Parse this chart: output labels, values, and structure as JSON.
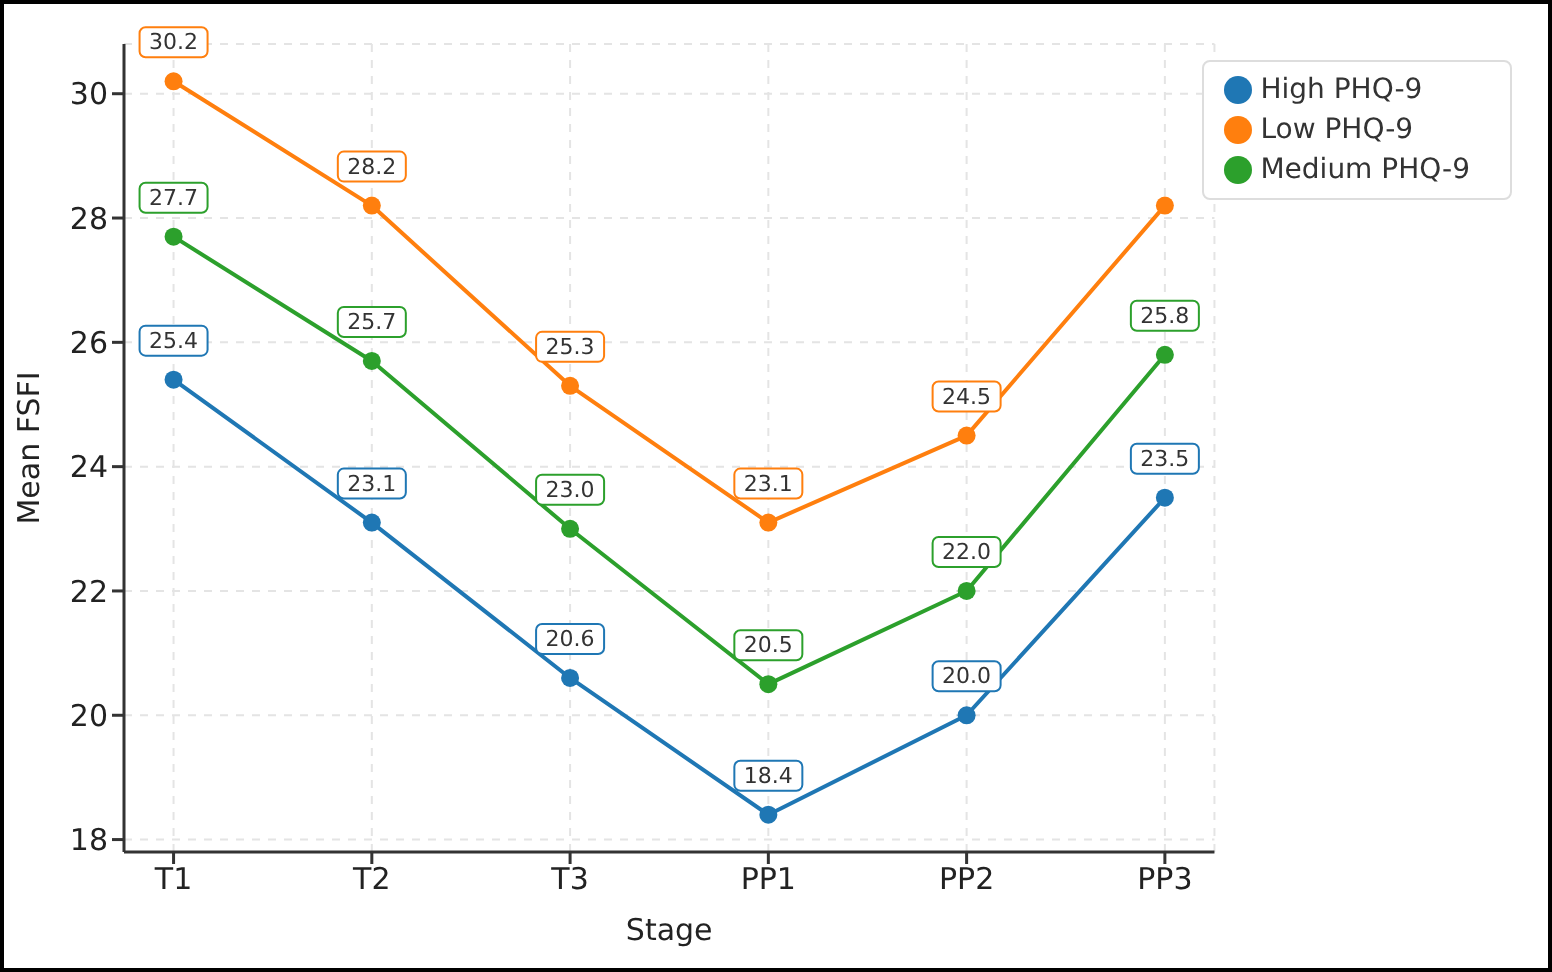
{
  "chart_data": {
    "type": "line",
    "xlabel": "Stage",
    "ylabel": "Mean FSFI",
    "categories": [
      "T1",
      "T2",
      "T3",
      "PP1",
      "PP2",
      "PP3"
    ],
    "series": [
      {
        "name": "High PHQ-9",
        "color": "#1f77b4",
        "values": [
          25.4,
          23.1,
          20.6,
          18.4,
          20.0,
          23.5
        ],
        "value_labels": [
          "25.4",
          "23.1",
          "20.6",
          "18.4",
          "20.0",
          "23.5"
        ]
      },
      {
        "name": "Low PHQ-9",
        "color": "#ff7f0e",
        "values": [
          30.2,
          28.2,
          25.3,
          23.1,
          24.5,
          28.2
        ],
        "value_labels": [
          "30.2",
          "28.2",
          "25.3",
          "23.1",
          "24.5",
          null
        ]
      },
      {
        "name": "Medium PHQ-9",
        "color": "#2ca02c",
        "values": [
          27.7,
          25.7,
          23.0,
          20.5,
          22.0,
          25.8
        ],
        "value_labels": [
          "27.7",
          "25.7",
          "23.0",
          "20.5",
          "22.0",
          "25.8"
        ]
      }
    ],
    "ylim": [
      17.8,
      30.8
    ],
    "yticks": [
      18,
      20,
      22,
      24,
      26,
      28,
      30
    ],
    "grid": true,
    "legend": "top right",
    "marker": "circle",
    "line_style": "solid"
  }
}
